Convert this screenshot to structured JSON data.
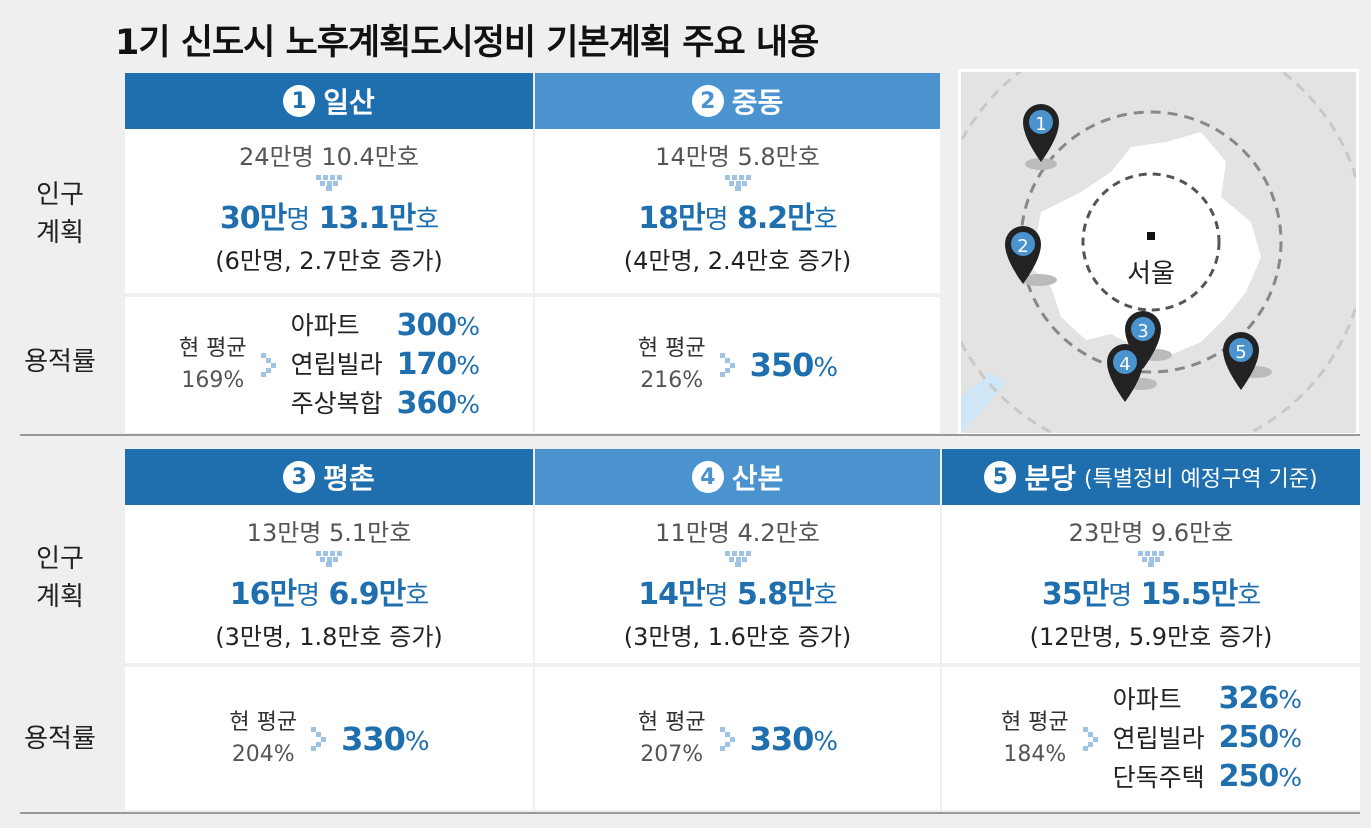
{
  "title": "1기 신도시 노후계획도시정비 기본계획 주요 내용",
  "row_labels": {
    "pop_line1": "인구",
    "pop_line2": "계획",
    "far": "용적률"
  },
  "cities": [
    {
      "num": "1",
      "name": "일산",
      "note": "",
      "pop_before": "24만명 10.4만호",
      "pop_after_people": "30만",
      "unit_people": "명",
      "pop_after_house": "13.1만",
      "unit_house": "호",
      "pop_increase": "(6만명, 2.7만호 증가)",
      "far_current_label": "현 평균",
      "far_current_value": "169%",
      "far_items": [
        {
          "label": "아파트",
          "value": "300",
          "pct": "%"
        },
        {
          "label": "연립빌라",
          "value": "170",
          "pct": "%"
        },
        {
          "label": "주상복합",
          "value": "360",
          "pct": "%"
        }
      ]
    },
    {
      "num": "2",
      "name": "중동",
      "note": "",
      "pop_before": "14만명 5.8만호",
      "pop_after_people": "18만",
      "unit_people": "명",
      "pop_after_house": "8.2만",
      "unit_house": "호",
      "pop_increase": "(4만명, 2.4만호 증가)",
      "far_current_label": "현 평균",
      "far_current_value": "216%",
      "far_target": "350",
      "far_pct": "%"
    },
    {
      "num": "3",
      "name": "평촌",
      "note": "",
      "pop_before": "13만명 5.1만호",
      "pop_after_people": "16만",
      "unit_people": "명",
      "pop_after_house": "6.9만",
      "unit_house": "호",
      "pop_increase": "(3만명, 1.8만호 증가)",
      "far_current_label": "현 평균",
      "far_current_value": "204%",
      "far_target": "330",
      "far_pct": "%"
    },
    {
      "num": "4",
      "name": "산본",
      "note": "",
      "pop_before": "11만명 4.2만호",
      "pop_after_people": "14만",
      "unit_people": "명",
      "pop_after_house": "5.8만",
      "unit_house": "호",
      "pop_increase": "(3만명, 1.6만호 증가)",
      "far_current_label": "현 평균",
      "far_current_value": "207%",
      "far_target": "330",
      "far_pct": "%"
    },
    {
      "num": "5",
      "name": "분당",
      "note": "(특별정비 예정구역 기준)",
      "pop_before": "23만명 9.6만호",
      "pop_after_people": "35만",
      "unit_people": "명",
      "pop_after_house": "15.5만",
      "unit_house": "호",
      "pop_increase": "(12만명, 5.9만호 증가)",
      "far_current_label": "현 평균",
      "far_current_value": "184%",
      "far_items": [
        {
          "label": "아파트",
          "value": "326",
          "pct": "%"
        },
        {
          "label": "연립빌라",
          "value": "250",
          "pct": "%"
        },
        {
          "label": "단독주택",
          "value": "250",
          "pct": "%"
        }
      ]
    }
  ],
  "map": {
    "center_label": "서울",
    "pins": [
      "1",
      "2",
      "3",
      "4",
      "5"
    ]
  },
  "colors": {
    "header_dark": "#1f6fae",
    "header_light": "#4a93cf",
    "value_blue": "#1f6fae"
  }
}
